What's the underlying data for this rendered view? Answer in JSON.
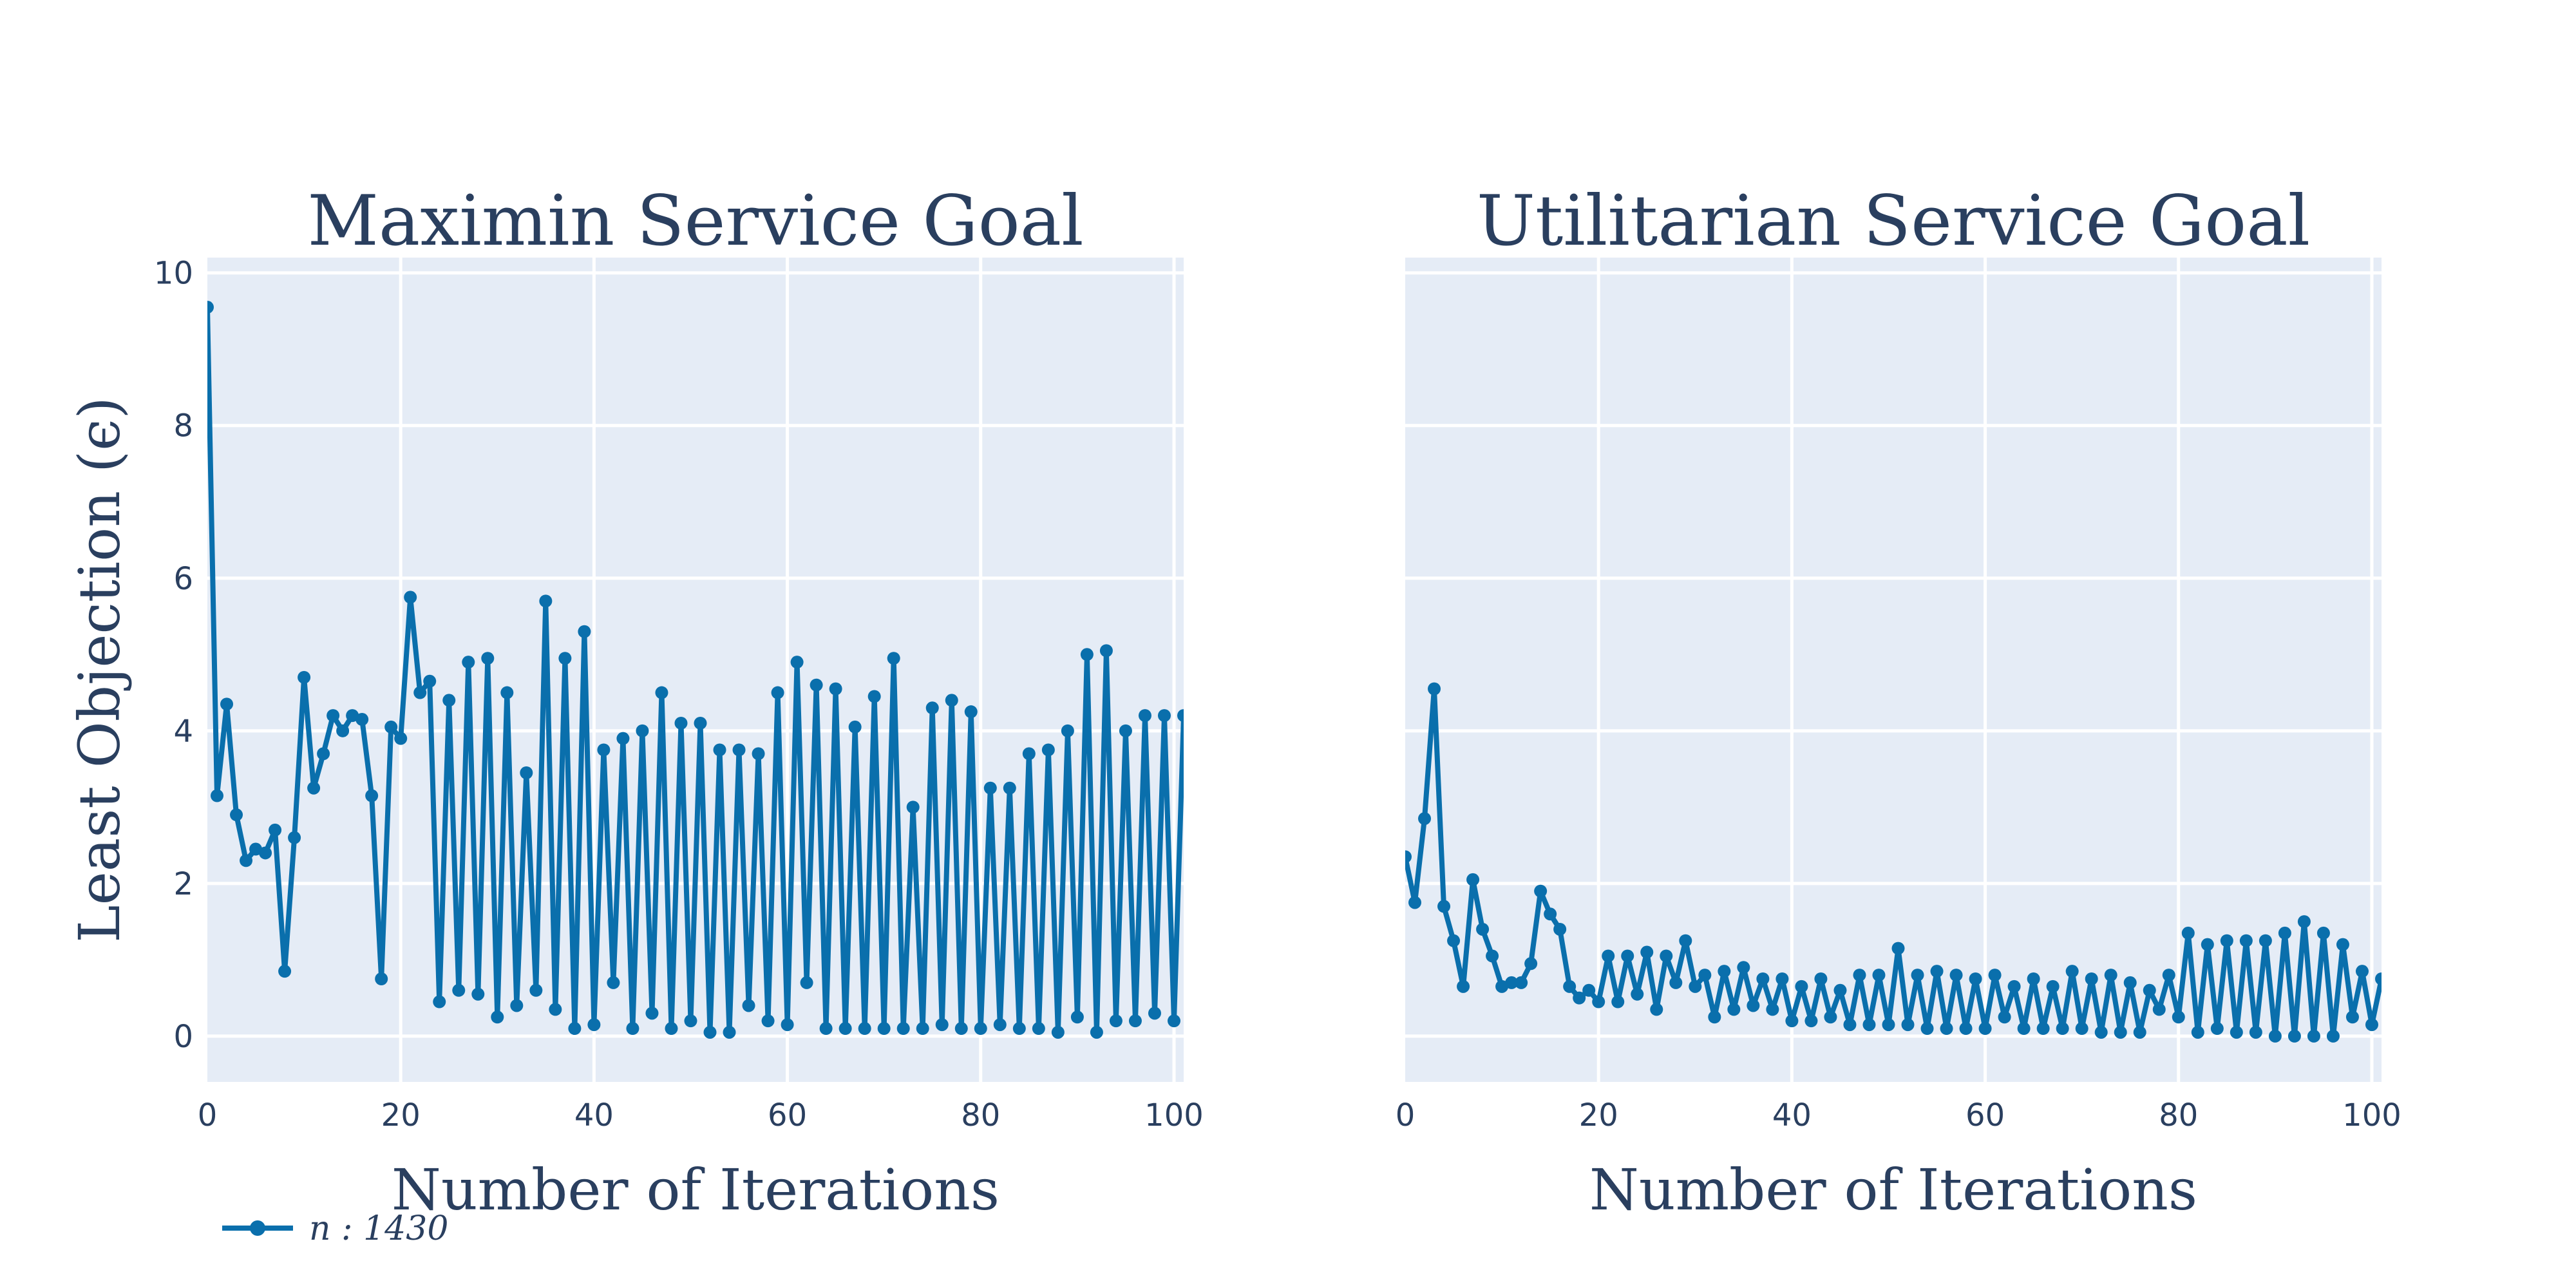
{
  "colors": {
    "series": "#0a6fac",
    "plot_bg": "#e5ecf6",
    "text": "#2a3f5f"
  },
  "legend": {
    "label": "n : 1430"
  },
  "chart_data": [
    {
      "type": "line",
      "title": "Maximin Service Goal",
      "xlabel": "Number of Iterations",
      "ylabel": "Least Objection (ϵ)",
      "xlim": [
        0,
        101
      ],
      "ylim": [
        -0.6,
        10.2
      ],
      "xticks": [
        0,
        20,
        40,
        60,
        80,
        100
      ],
      "yticks": [
        0,
        2,
        4,
        6,
        8,
        10
      ],
      "series": [
        {
          "name": "n : 1430",
          "x": [
            0,
            1,
            2,
            3,
            4,
            5,
            6,
            7,
            8,
            9,
            10,
            11,
            12,
            13,
            14,
            15,
            16,
            17,
            18,
            19,
            20,
            21,
            22,
            23,
            24,
            25,
            26,
            27,
            28,
            29,
            30,
            31,
            32,
            33,
            34,
            35,
            36,
            37,
            38,
            39,
            40,
            41,
            42,
            43,
            44,
            45,
            46,
            47,
            48,
            49,
            50,
            51,
            52,
            53,
            54,
            55,
            56,
            57,
            58,
            59,
            60,
            61,
            62,
            63,
            64,
            65,
            66,
            67,
            68,
            69,
            70,
            71,
            72,
            73,
            74,
            75,
            76,
            77,
            78,
            79,
            80,
            81,
            82,
            83,
            84,
            85,
            86,
            87,
            88,
            89,
            90,
            91,
            92,
            93,
            94,
            95,
            96,
            97,
            98,
            99,
            100,
            101
          ],
          "y": [
            9.55,
            3.15,
            4.35,
            2.9,
            2.3,
            2.45,
            2.4,
            2.7,
            0.85,
            2.6,
            4.7,
            3.25,
            3.7,
            4.2,
            4.0,
            4.2,
            4.15,
            3.15,
            0.75,
            4.05,
            3.9,
            5.75,
            4.5,
            4.65,
            0.45,
            4.4,
            0.6,
            4.9,
            0.55,
            4.95,
            0.25,
            4.5,
            0.4,
            3.45,
            0.6,
            5.7,
            0.35,
            4.95,
            0.1,
            5.3,
            0.15,
            3.75,
            0.7,
            3.9,
            0.1,
            4.0,
            0.3,
            4.5,
            0.1,
            4.1,
            0.2,
            4.1,
            0.05,
            3.75,
            0.05,
            3.75,
            0.4,
            3.7,
            0.2,
            4.5,
            0.15,
            4.9,
            0.7,
            4.6,
            0.1,
            4.55,
            0.1,
            4.05,
            0.1,
            4.45,
            0.1,
            4.95,
            0.1,
            3.0,
            0.1,
            4.3,
            0.15,
            4.4,
            0.1,
            4.25,
            0.1,
            3.25,
            0.15,
            3.25,
            0.1,
            3.7,
            0.1,
            3.75,
            0.05,
            4.0,
            0.25,
            5.0,
            0.05,
            5.05,
            0.2,
            4.0,
            0.2,
            4.2,
            0.3,
            4.2,
            0.2,
            4.2
          ]
        }
      ]
    },
    {
      "type": "line",
      "title": "Utilitarian Service Goal",
      "xlabel": "Number of Iterations",
      "xlim": [
        0,
        101
      ],
      "ylim": [
        -0.6,
        10.2
      ],
      "xticks": [
        0,
        20,
        40,
        60,
        80,
        100
      ],
      "yticks": [
        0,
        2,
        4,
        6,
        8,
        10
      ],
      "series": [
        {
          "name": "n : 1430",
          "x": [
            0,
            1,
            2,
            3,
            4,
            5,
            6,
            7,
            8,
            9,
            10,
            11,
            12,
            13,
            14,
            15,
            16,
            17,
            18,
            19,
            20,
            21,
            22,
            23,
            24,
            25,
            26,
            27,
            28,
            29,
            30,
            31,
            32,
            33,
            34,
            35,
            36,
            37,
            38,
            39,
            40,
            41,
            42,
            43,
            44,
            45,
            46,
            47,
            48,
            49,
            50,
            51,
            52,
            53,
            54,
            55,
            56,
            57,
            58,
            59,
            60,
            61,
            62,
            63,
            64,
            65,
            66,
            67,
            68,
            69,
            70,
            71,
            72,
            73,
            74,
            75,
            76,
            77,
            78,
            79,
            80,
            81,
            82,
            83,
            84,
            85,
            86,
            87,
            88,
            89,
            90,
            91,
            92,
            93,
            94,
            95,
            96,
            97,
            98,
            99,
            100,
            101
          ],
          "y": [
            2.35,
            1.75,
            2.85,
            4.55,
            1.7,
            1.25,
            0.65,
            2.05,
            1.4,
            1.05,
            0.65,
            0.7,
            0.7,
            0.95,
            1.9,
            1.6,
            1.4,
            0.65,
            0.5,
            0.6,
            0.45,
            1.05,
            0.45,
            1.05,
            0.55,
            1.1,
            0.35,
            1.05,
            0.7,
            1.25,
            0.65,
            0.8,
            0.25,
            0.85,
            0.35,
            0.9,
            0.4,
            0.75,
            0.35,
            0.75,
            0.2,
            0.65,
            0.2,
            0.75,
            0.25,
            0.6,
            0.15,
            0.8,
            0.15,
            0.8,
            0.15,
            1.15,
            0.15,
            0.8,
            0.1,
            0.85,
            0.1,
            0.8,
            0.1,
            0.75,
            0.1,
            0.8,
            0.25,
            0.65,
            0.1,
            0.75,
            0.1,
            0.65,
            0.1,
            0.85,
            0.1,
            0.75,
            0.05,
            0.8,
            0.05,
            0.7,
            0.05,
            0.6,
            0.35,
            0.8,
            0.25,
            1.35,
            0.05,
            1.2,
            0.1,
            1.25,
            0.05,
            1.25,
            0.05,
            1.25,
            0.0,
            1.35,
            0.0,
            1.5,
            0.0,
            1.35,
            0.0,
            1.2,
            0.25,
            0.85,
            0.15,
            0.75
          ]
        }
      ]
    }
  ]
}
